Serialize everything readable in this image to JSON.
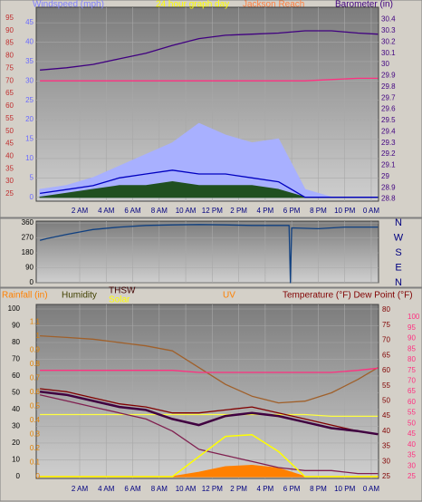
{
  "chart_data": [
    {
      "type": "line",
      "labels": [
        {
          "text": "Windspeed (mph)",
          "color": "#8080ff"
        },
        {
          "text": "24 hour graph day",
          "color": "#ffff00"
        },
        {
          "text": "Jackson Reach",
          "color": "#ff8040"
        },
        {
          "text": "Barometer (in)",
          "color": "#400080"
        }
      ],
      "x": [
        -1,
        1,
        3,
        5,
        7,
        9,
        11,
        13,
        15,
        17,
        19,
        21,
        23,
        24.5
      ],
      "xlim": [
        -1.28,
        24.55
      ],
      "xticks": [
        {
          "value": 2,
          "label": "2 AM"
        },
        {
          "value": 4,
          "label": "4 AM"
        },
        {
          "value": 6,
          "label": "6 AM"
        },
        {
          "value": 8,
          "label": "8 AM"
        },
        {
          "value": 10,
          "label": "10 AM"
        },
        {
          "value": 12,
          "label": "12 PM"
        },
        {
          "value": 14,
          "label": "2 PM"
        },
        {
          "value": 16,
          "label": "4 PM"
        },
        {
          "value": 18,
          "label": "6 PM"
        },
        {
          "value": 20,
          "label": "8 PM"
        },
        {
          "value": 22,
          "label": "10 PM"
        },
        {
          "value": 24,
          "label": "0 AM"
        }
      ],
      "ylim": [
        -1,
        49
      ],
      "yticks": [
        0,
        5,
        10,
        15,
        20,
        25,
        30,
        35,
        40,
        45
      ],
      "ycolor": "#6a6aff",
      "y2lim": [
        28.78,
        30.51
      ],
      "y2ticks": [
        28.8,
        28.9,
        29,
        29.1,
        29.2,
        29.3,
        29.4,
        29.5,
        29.6,
        29.7,
        29.8,
        29.9,
        30,
        30.1,
        30.2,
        30.3,
        30.4
      ],
      "y2color": "#400080",
      "y3lim": [
        22.1,
        99.3
      ],
      "y3ticks": [
        25,
        30,
        35,
        40,
        45,
        50,
        55,
        60,
        65,
        70,
        75,
        80,
        85,
        90,
        95
      ],
      "y3color": "#c03030",
      "grid": true,
      "series": [
        {
          "color": "#a8b0ff",
          "fill": true,
          "values": [
            2,
            3,
            5,
            8,
            11,
            14,
            19,
            16,
            14,
            15,
            2,
            0,
            0,
            0
          ]
        },
        {
          "color": "#205020",
          "fill": true,
          "values": [
            0,
            1,
            2,
            3,
            3,
            4,
            3,
            3,
            3,
            2,
            0,
            0,
            0,
            0
          ]
        },
        {
          "color": "#0000c0",
          "values": [
            1,
            2,
            3,
            5,
            6,
            7,
            6,
            6,
            5,
            4,
            0,
            0,
            0,
            0
          ]
        },
        {
          "color": "#400080",
          "axis": "y2",
          "values": [
            29.95,
            29.97,
            30.0,
            30.05,
            30.1,
            30.17,
            30.23,
            30.26,
            30.27,
            30.28,
            30.3,
            30.3,
            30.28,
            30.27
          ]
        },
        {
          "color": "#ff3080",
          "axis": "y3",
          "values": [
            70,
            70,
            70,
            70,
            70,
            70,
            70,
            70,
            70,
            70,
            70,
            70.5,
            71,
            71
          ]
        }
      ]
    },
    {
      "type": "line",
      "x": [
        -1,
        -0.5,
        1,
        3,
        5,
        7,
        9,
        11,
        13,
        15,
        17,
        17.8,
        17.9,
        18,
        20,
        22,
        24.5
      ],
      "xlim": [
        -1.28,
        24.55
      ],
      "xticks": [
        2,
        4,
        6,
        8,
        10,
        12,
        14,
        16,
        18,
        20,
        22,
        24
      ],
      "ylim": [
        0,
        371
      ],
      "yticks": [
        0,
        90,
        180,
        270,
        360
      ],
      "ycolor": "#000000",
      "direction_labels": [
        "N",
        "E",
        "S",
        "W",
        "N"
      ],
      "grid": true,
      "series": [
        {
          "color": "#104080",
          "values": [
            255,
            265,
            290,
            320,
            335,
            345,
            348,
            350,
            348,
            345,
            345,
            345,
            0,
            330,
            325,
            335,
            335
          ]
        }
      ]
    },
    {
      "type": "line",
      "labels": [
        {
          "text": "Rainfall (in)",
          "color": "#ff8000"
        },
        {
          "text": "Humidity",
          "color": "#404000"
        },
        {
          "text": "THSW",
          "color": "#400000"
        },
        {
          "text": "Solar",
          "color": "#ffff00"
        },
        {
          "text": "UV",
          "color": "#ff8000"
        },
        {
          "text": "Temperature (°F) Dew Point (°F)",
          "color": "#800000"
        }
      ],
      "x": [
        -1,
        1,
        3,
        5,
        7,
        9,
        11,
        13,
        15,
        17,
        19,
        21,
        23,
        24.5
      ],
      "xlim": [
        -1.28,
        24.55
      ],
      "xticks": [
        {
          "value": 2,
          "label": "2 AM"
        },
        {
          "value": 4,
          "label": "4 AM"
        },
        {
          "value": 6,
          "label": "6 AM"
        },
        {
          "value": 8,
          "label": "8 AM"
        },
        {
          "value": 10,
          "label": "10 AM"
        },
        {
          "value": 12,
          "label": "12 PM"
        },
        {
          "value": 14,
          "label": "2 PM"
        },
        {
          "value": 16,
          "label": "4 PM"
        },
        {
          "value": 18,
          "label": "6 PM"
        },
        {
          "value": 20,
          "label": "8 PM"
        },
        {
          "value": 22,
          "label": "10 PM"
        },
        {
          "value": 24,
          "label": "0 AM"
        }
      ],
      "ylim": [
        -1.1,
        102.7
      ],
      "yticks": [
        0,
        10,
        20,
        30,
        40,
        50,
        60,
        70,
        80,
        90,
        100
      ],
      "ycolor": "#000000",
      "y2lim": [
        -0.013,
        1.226
      ],
      "y2ticks": [
        0,
        0.1,
        0.2,
        0.3,
        0.4,
        0.5,
        0.6,
        0.7,
        0.8,
        0.9,
        1,
        1.1
      ],
      "y2color": "#e08000",
      "y3lim": [
        24.4,
        81.8
      ],
      "y3ticks": [
        25,
        30,
        35,
        40,
        45,
        50,
        55,
        60,
        65,
        70,
        75,
        80
      ],
      "y3color": "#800000",
      "y4lim": [
        24.1,
        106
      ],
      "y4ticks": [
        25,
        30,
        35,
        40,
        45,
        50,
        55,
        60,
        65,
        70,
        75,
        80,
        85,
        90,
        95,
        100
      ],
      "y4color": "#ff3080",
      "grid": true,
      "series": [
        {
          "color": "#ff8000",
          "axis": "y2",
          "fill": true,
          "values": [
            0,
            0,
            0,
            0,
            0,
            0,
            0.03,
            0.07,
            0.08,
            0.06,
            0,
            0,
            0,
            0
          ]
        },
        {
          "color": "#ff8000",
          "axis": "y2",
          "values": [
            0,
            0,
            0,
            0,
            0,
            0,
            0,
            0,
            0,
            0,
            0,
            0,
            0,
            0
          ]
        },
        {
          "color": "#a0602a",
          "values": [
            84,
            83,
            82,
            80,
            78,
            75,
            65,
            55,
            48,
            44,
            45,
            50,
            58,
            65
          ]
        },
        {
          "color": "#ff3080",
          "axis": "y4",
          "values": [
            75,
            75,
            75,
            75,
            75,
            75,
            74,
            74,
            74,
            74,
            74,
            74,
            75,
            76
          ]
        },
        {
          "color": "#ffff40",
          "values": [
            37,
            37,
            37,
            37,
            37,
            37,
            37,
            37,
            37,
            37,
            37,
            36,
            36,
            36
          ]
        },
        {
          "color": "#802050",
          "axis": "y3",
          "values": [
            52,
            50,
            48,
            46,
            44,
            40,
            34,
            32,
            30,
            28,
            27,
            27,
            26,
            26
          ]
        },
        {
          "color": "#800000",
          "axis": "y3",
          "values": [
            54,
            53,
            51,
            49,
            48,
            46,
            46,
            47,
            48,
            46,
            44,
            42,
            40,
            39
          ]
        },
        {
          "color": "#400040",
          "axis": "y3",
          "width": 2.5,
          "values": [
            53,
            52,
            50,
            48,
            47,
            44,
            42,
            45,
            46,
            45,
            43,
            41,
            40,
            39
          ]
        },
        {
          "color": "#ffff00",
          "width": 1.5,
          "values": [
            0,
            0,
            0,
            0,
            0,
            0,
            12,
            24,
            25,
            15,
            0,
            0,
            0,
            0
          ]
        }
      ]
    }
  ]
}
